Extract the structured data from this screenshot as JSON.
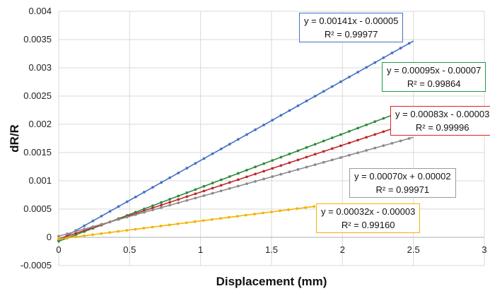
{
  "chart_data": {
    "type": "scatter",
    "xlabel": "Displacement (mm)",
    "ylabel": "dR/R",
    "xlim": [
      0,
      3
    ],
    "ylim": [
      -0.0005,
      0.004
    ],
    "xticks": [
      "0",
      "0.5",
      "1",
      "1.5",
      "2",
      "2.5",
      "3"
    ],
    "yticks": [
      "-0.0005",
      "0",
      "0.0005",
      "0.001",
      "0.0015",
      "0.002",
      "0.0025",
      "0.003",
      "0.0035",
      "0.004"
    ],
    "grid": true,
    "series": [
      {
        "color": "#4472C4",
        "slope": 0.00141,
        "intercept": -5e-05,
        "x_end": 2.5,
        "equation": "y = 0.00141x - 0.00005",
        "r2": "R² = 0.99977",
        "box_color": "#4472C4"
      },
      {
        "color": "#2E8B3E",
        "slope": 0.00095,
        "intercept": -7e-05,
        "x_end": 2.5,
        "equation": "y = 0.00095x - 0.00007",
        "r2": "R² = 0.99864",
        "box_color": "#1E9A4A"
      },
      {
        "color": "#C0292B",
        "slope": 0.00083,
        "intercept": -3e-05,
        "x_end": 2.5,
        "equation": "y = 0.00083x - 0.00003",
        "r2": "R² = 0.99996",
        "box_color": "#E02020"
      },
      {
        "color": "#8C8C8C",
        "slope": 0.0007,
        "intercept": 2e-05,
        "x_end": 2.5,
        "equation": "y = 0.00070x + 0.00002",
        "r2": "R² = 0.99971",
        "box_color": "#9A9A9A"
      },
      {
        "color": "#F2B400",
        "slope": 0.00032,
        "intercept": -3e-05,
        "x_end": 1.8,
        "equation": "y = 0.00032x - 0.00003",
        "r2": "R² = 0.99160",
        "box_color": "#F2B400"
      }
    ]
  }
}
